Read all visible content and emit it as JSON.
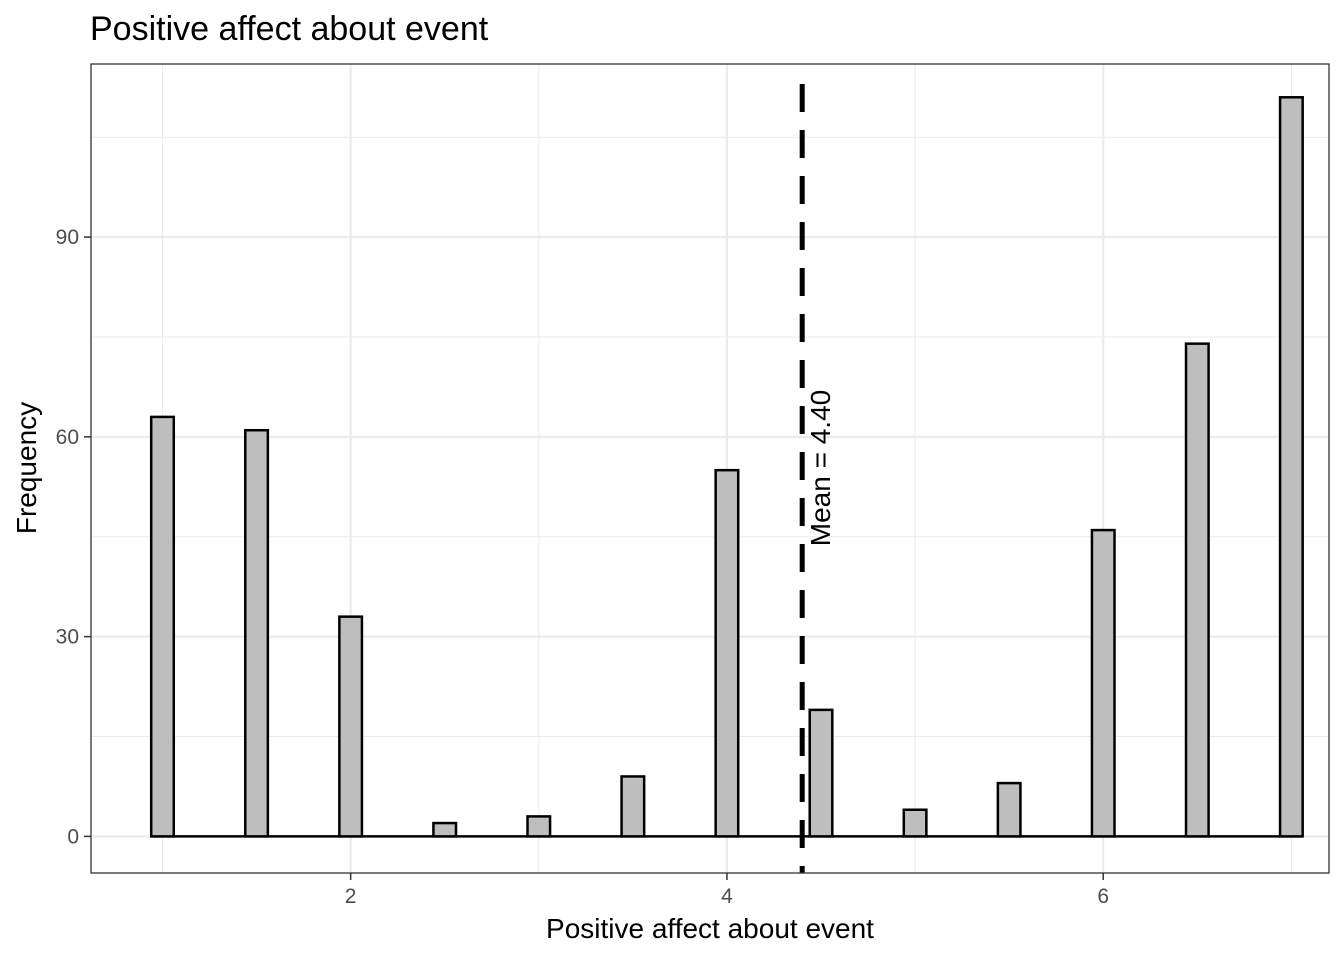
{
  "chart_data": {
    "type": "bar",
    "title": "Positive affect about event",
    "xlabel": "Positive affect about event",
    "ylabel": "Frequency",
    "x": [
      1.0,
      1.5,
      2.0,
      2.5,
      3.0,
      3.5,
      4.0,
      4.5,
      5.0,
      5.5,
      6.0,
      6.5,
      7.0
    ],
    "values": [
      63,
      61,
      33,
      2,
      3,
      9,
      55,
      19,
      4,
      8,
      46,
      74,
      111
    ],
    "xlim": [
      0.62,
      7.2
    ],
    "ylim": [
      -5.5,
      116
    ],
    "xticks": [
      2,
      4,
      6
    ],
    "yticks": [
      0,
      30,
      60,
      90
    ],
    "grid": true,
    "bar_color": "#bebebe",
    "mean": {
      "value": 4.4,
      "label": "Mean = 4.40"
    }
  }
}
